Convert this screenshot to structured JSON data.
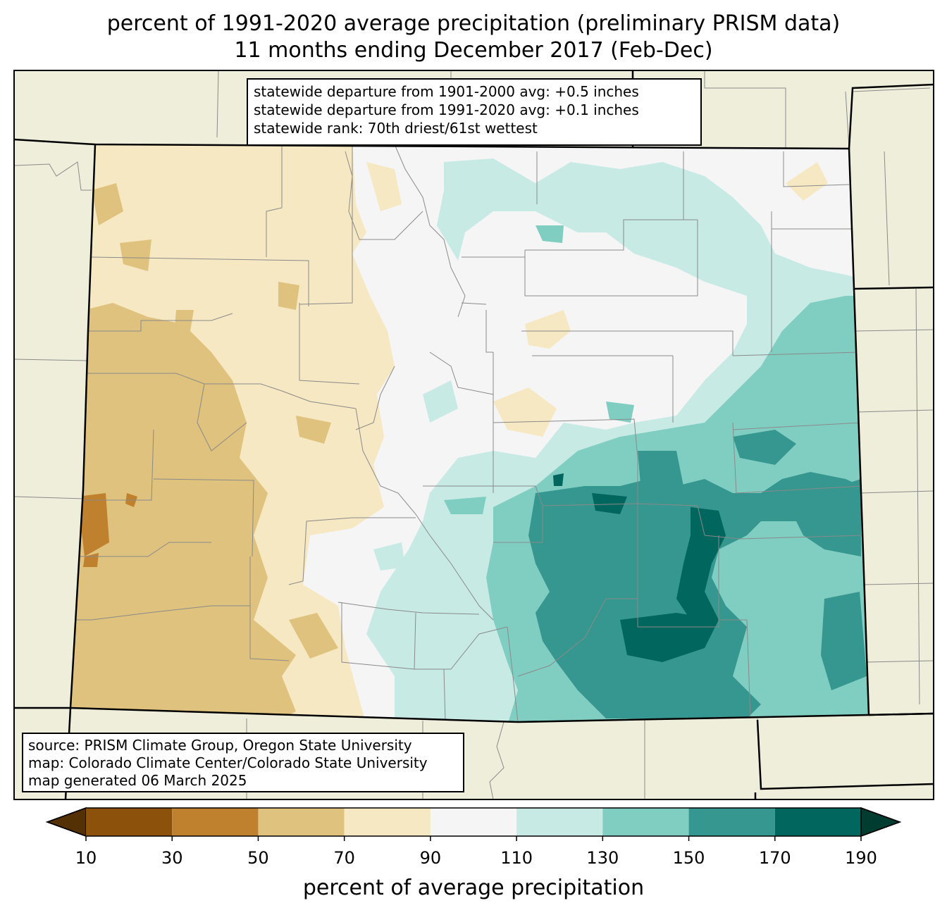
{
  "title": {
    "line1": "percent of 1991-2020 average precipitation (preliminary PRISM data)",
    "line2": "11 months ending December 2017 (Feb-Dec)"
  },
  "stats_box": {
    "line1": "statewide departure from 1901-2000 avg: +0.5 inches",
    "line2": "statewide departure from 1991-2020 avg: +0.1 inches",
    "line3": "statewide rank: 70th driest/61st wettest"
  },
  "source_box": {
    "line1": "source: PRISM Climate Group, Oregon State University",
    "line2": "map: Colorado Climate Center/Colorado State University",
    "line3": "map generated 06 March 2025"
  },
  "colorbar": {
    "label": "percent of average precipitation",
    "ticks": [
      "10",
      "30",
      "50",
      "70",
      "90",
      "110",
      "130",
      "150",
      "170",
      "190"
    ],
    "under_color": "#543005",
    "over_color": "#003c30",
    "bins": [
      {
        "range": "10-30",
        "color": "#8c510a"
      },
      {
        "range": "30-50",
        "color": "#bf812d"
      },
      {
        "range": "50-70",
        "color": "#dfc27d"
      },
      {
        "range": "70-90",
        "color": "#f6e8c3"
      },
      {
        "range": "90-110",
        "color": "#f5f5f5"
      },
      {
        "range": "110-130",
        "color": "#c7eae5"
      },
      {
        "range": "130-150",
        "color": "#80cdc1"
      },
      {
        "range": "150-170",
        "color": "#35978f"
      },
      {
        "range": "170-190",
        "color": "#01665e"
      }
    ]
  },
  "map": {
    "background_color": "#efeedb",
    "region": "Colorado"
  }
}
